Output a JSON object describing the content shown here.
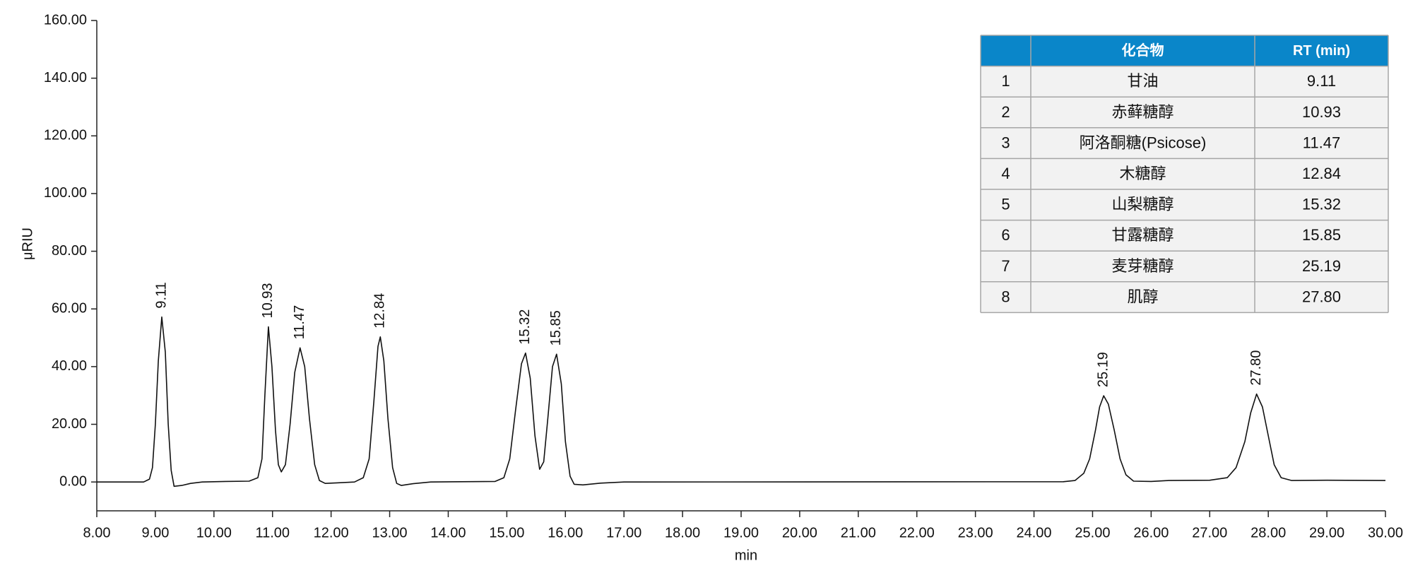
{
  "chart_data": {
    "type": "line",
    "xlabel": "min",
    "ylabel": "μRIU",
    "color": "#111111",
    "xlim": [
      8,
      30
    ],
    "ylim": [
      -10,
      160
    ],
    "xticks": [
      {
        "value": 8,
        "label": "8.00"
      },
      {
        "value": 9,
        "label": "9.00"
      },
      {
        "value": 10,
        "label": "10.00"
      },
      {
        "value": 11,
        "label": "11.00"
      },
      {
        "value": 12,
        "label": "12.00"
      },
      {
        "value": 13,
        "label": "13.00"
      },
      {
        "value": 14,
        "label": "14.00"
      },
      {
        "value": 15,
        "label": "15.00"
      },
      {
        "value": 16,
        "label": "16.00"
      },
      {
        "value": 17,
        "label": "17.00"
      },
      {
        "value": 18,
        "label": "18.00"
      },
      {
        "value": 19,
        "label": "19.00"
      },
      {
        "value": 20,
        "label": "20.00"
      },
      {
        "value": 21,
        "label": "21.00"
      },
      {
        "value": 22,
        "label": "22.00"
      },
      {
        "value": 23,
        "label": "23.00"
      },
      {
        "value": 24,
        "label": "24.00"
      },
      {
        "value": 25,
        "label": "25.00"
      },
      {
        "value": 26,
        "label": "26.00"
      },
      {
        "value": 27,
        "label": "27.00"
      },
      {
        "value": 28,
        "label": "28.00"
      },
      {
        "value": 29,
        "label": "29.00"
      },
      {
        "value": 30,
        "label": "30.00"
      }
    ],
    "yticks": [
      {
        "value": 0,
        "label": "0.00"
      },
      {
        "value": 20,
        "label": "20.00"
      },
      {
        "value": 40,
        "label": "40.00"
      },
      {
        "value": 60,
        "label": "60.00"
      },
      {
        "value": 80,
        "label": "80.00"
      },
      {
        "value": 100,
        "label": "100.00"
      },
      {
        "value": 120,
        "label": "120.00"
      },
      {
        "value": 140,
        "label": "140.00"
      },
      {
        "value": 160,
        "label": "160.00"
      }
    ],
    "x": [
      8.0,
      8.8,
      8.9,
      8.95,
      9.0,
      9.05,
      9.11,
      9.17,
      9.22,
      9.27,
      9.32,
      9.45,
      9.6,
      9.8,
      10.2,
      10.6,
      10.75,
      10.82,
      10.87,
      10.93,
      10.99,
      11.05,
      11.1,
      11.15,
      11.22,
      11.3,
      11.38,
      11.47,
      11.55,
      11.63,
      11.72,
      11.8,
      11.9,
      12.1,
      12.4,
      12.55,
      12.65,
      12.73,
      12.8,
      12.84,
      12.9,
      12.97,
      13.05,
      13.12,
      13.2,
      13.4,
      13.7,
      14.8,
      14.95,
      15.05,
      15.15,
      15.25,
      15.32,
      15.4,
      15.48,
      15.56,
      15.63,
      15.7,
      15.78,
      15.85,
      15.93,
      16.0,
      16.08,
      16.15,
      16.3,
      16.6,
      17.0,
      24.5,
      24.7,
      24.85,
      24.95,
      25.05,
      25.12,
      25.19,
      25.27,
      25.37,
      25.47,
      25.57,
      25.7,
      26.0,
      26.3,
      27.0,
      27.3,
      27.45,
      27.6,
      27.7,
      27.8,
      27.9,
      28.0,
      28.1,
      28.22,
      28.4,
      29.0,
      30.0
    ],
    "values": [
      0,
      0,
      1,
      5,
      20,
      42,
      57.2,
      45,
      20,
      4,
      -1.5,
      -1.2,
      -0.5,
      0,
      0.2,
      0.3,
      1.5,
      8,
      30,
      53.8,
      40,
      18,
      6,
      3.5,
      6,
      20,
      38,
      46.5,
      40,
      22,
      6,
      0.5,
      -0.5,
      -0.3,
      0,
      1.5,
      8,
      28,
      47,
      50.3,
      42,
      22,
      5,
      -0.5,
      -1.2,
      -0.6,
      0,
      0.2,
      1.5,
      8,
      25,
      41,
      44.7,
      36,
      16,
      4.4,
      7,
      22,
      40,
      44.3,
      34,
      14,
      2,
      -0.8,
      -1,
      -0.4,
      0,
      0.1,
      0.5,
      3,
      8,
      18,
      26,
      29.9,
      27,
      18,
      8,
      2.5,
      0.3,
      0.2,
      0.5,
      0.6,
      1.5,
      5,
      14,
      24,
      30.5,
      26,
      16,
      6,
      1.5,
      0.5,
      0.6,
      0.5
    ],
    "annotations": [
      {
        "x": 9.11,
        "text": "9.11"
      },
      {
        "x": 10.93,
        "text": "10.93"
      },
      {
        "x": 11.47,
        "text": "11.47"
      },
      {
        "x": 12.84,
        "text": "12.84"
      },
      {
        "x": 15.32,
        "text": "15.32"
      },
      {
        "x": 15.85,
        "text": "15.85"
      },
      {
        "x": 25.19,
        "text": "25.19"
      },
      {
        "x": 27.8,
        "text": "27.80"
      }
    ]
  },
  "table": {
    "header": [
      "化合物",
      "RT (min)"
    ],
    "rows": [
      [
        "1",
        "甘油",
        "9.11"
      ],
      [
        "2",
        "赤藓糖醇",
        "10.93"
      ],
      [
        "3",
        "阿洛酮糖(Psicose)",
        "11.47"
      ],
      [
        "4",
        "木糖醇",
        "12.84"
      ],
      [
        "5",
        "山梨糖醇",
        "15.32"
      ],
      [
        "6",
        "甘露糖醇",
        "15.85"
      ],
      [
        "7",
        "麦芽糖醇",
        "25.19"
      ],
      [
        "8",
        "肌醇",
        "27.80"
      ]
    ]
  }
}
